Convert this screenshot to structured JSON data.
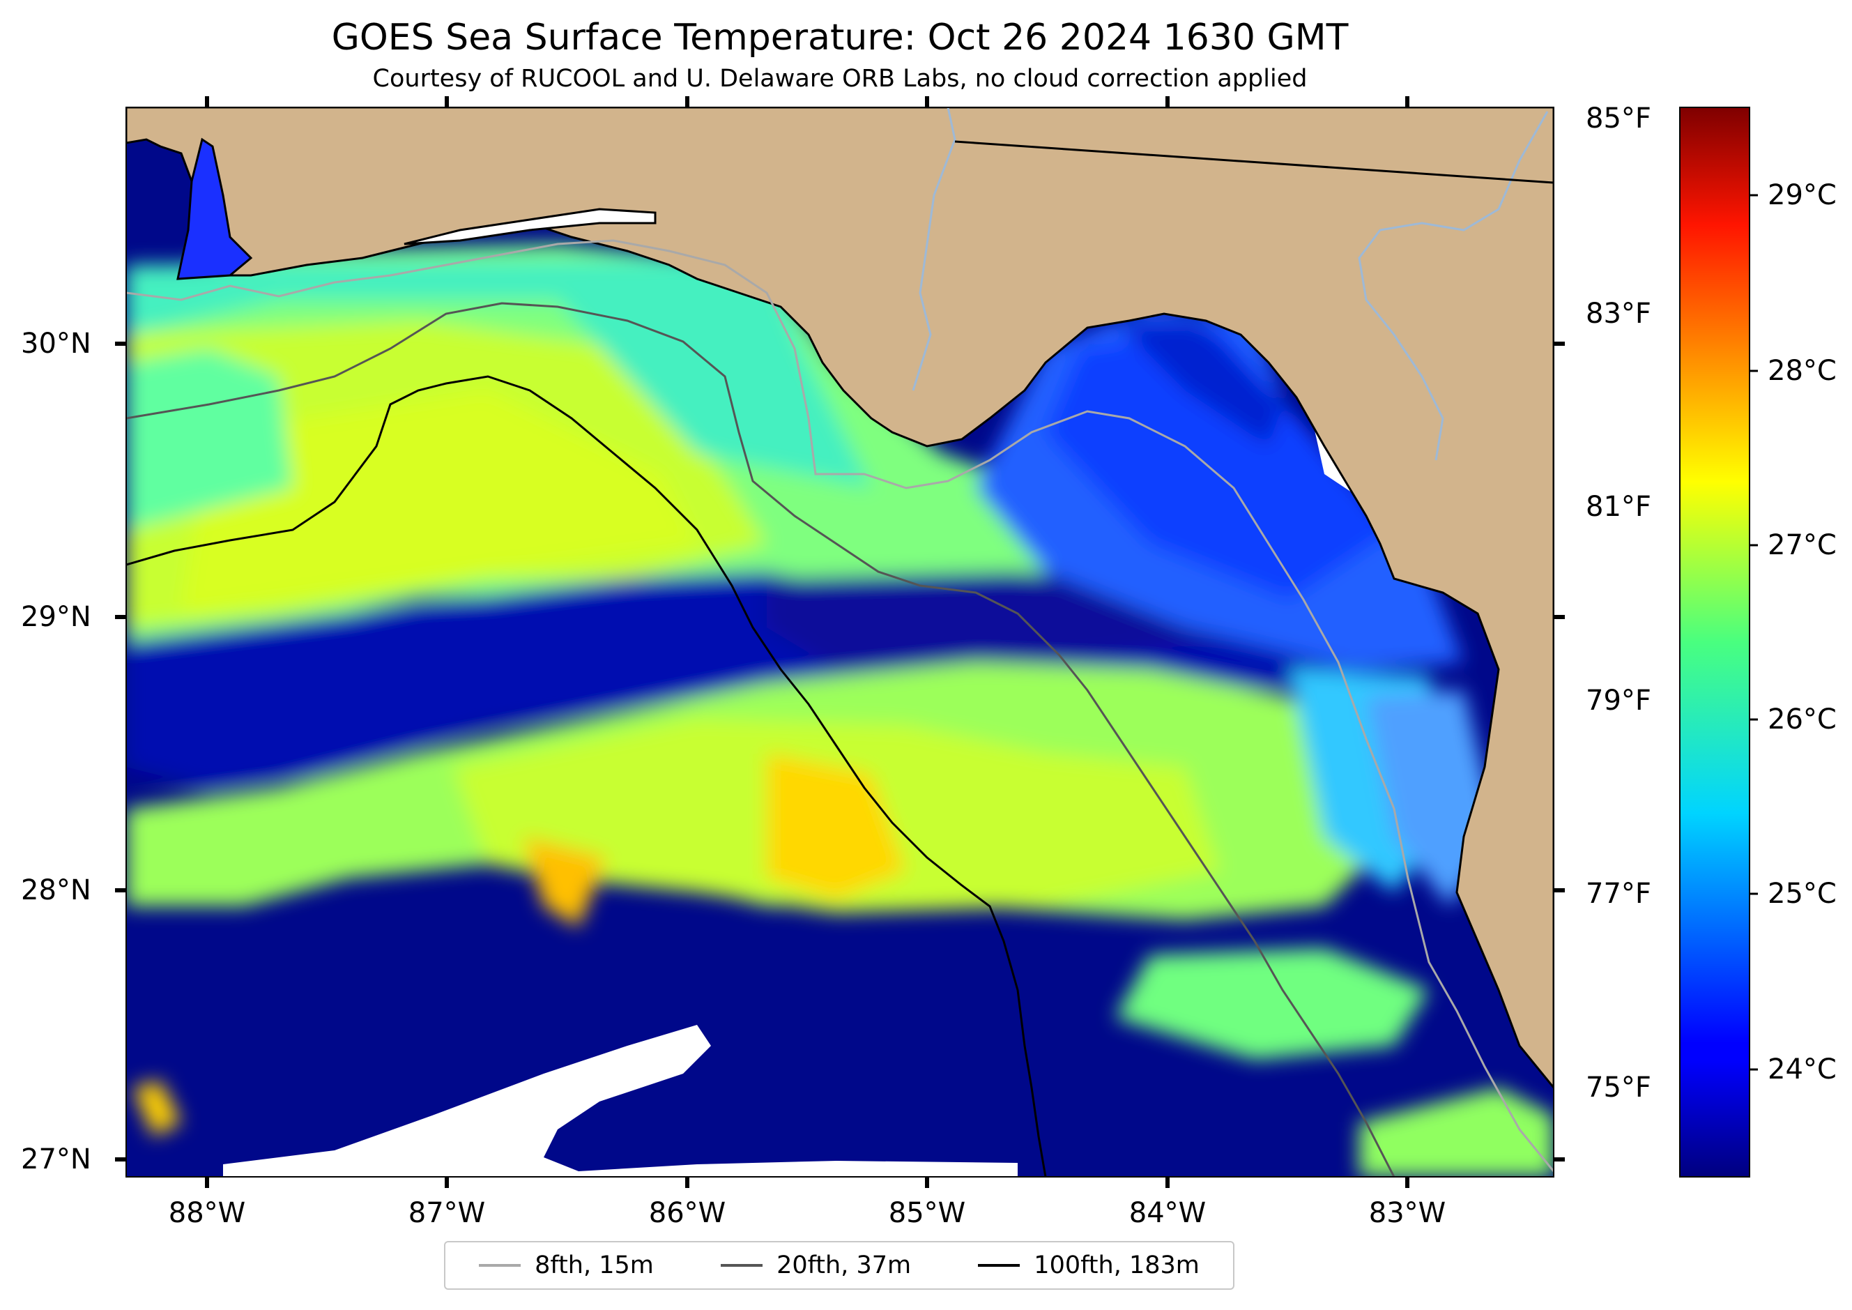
{
  "header": {
    "title": "GOES Sea Surface Temperature: Oct 26 2024 1630 GMT",
    "subtitle": "Courtesy of RUCOOL and U. Delaware ORB Labs, no cloud correction applied"
  },
  "map": {
    "lat_labels": [
      "30°N",
      "29°N",
      "28°N",
      "27°N"
    ],
    "lon_labels": [
      "88°W",
      "87°W",
      "86°W",
      "85°W",
      "84°W",
      "83°W"
    ],
    "colors": {
      "land": "#d2b48c",
      "no_data": "#ffffff",
      "coast": "#000000",
      "river": "#9eb9d6"
    }
  },
  "colorbar": {
    "fahrenheit_labels": [
      "85°F",
      "83°F",
      "81°F",
      "79°F",
      "77°F",
      "75°F"
    ],
    "celsius_labels": [
      "29°C",
      "28°C",
      "27°C",
      "26°C",
      "25°C",
      "24°C"
    ],
    "colormap": "jet"
  },
  "legend": {
    "items": [
      {
        "label": "8fth, 15m",
        "color": "#a9a9a9"
      },
      {
        "label": "20fth, 37m",
        "color": "#555555"
      },
      {
        "label": "100fth, 183m",
        "color": "#000000"
      }
    ]
  }
}
